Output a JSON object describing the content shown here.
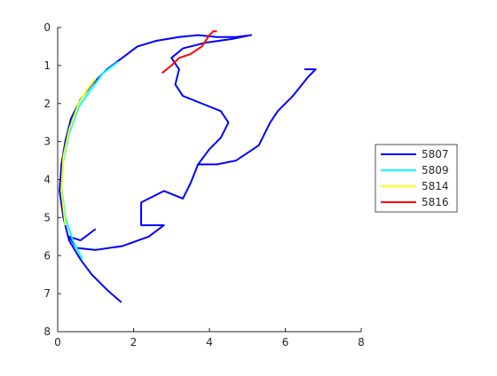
{
  "chart_data": {
    "type": "line",
    "xlim": [
      0,
      8
    ],
    "ylim": [
      0,
      8
    ],
    "ydir": "reverse",
    "xticks": [
      0,
      2,
      4,
      6,
      8
    ],
    "yticks": [
      0,
      1,
      2,
      3,
      4,
      5,
      6,
      7,
      8
    ],
    "legend": "east-outside",
    "series": [
      {
        "name": "5807",
        "color": "#0000ff",
        "x": [
          1.68,
          1.3,
          0.9,
          0.6,
          0.3,
          0.15,
          0.05,
          0.1,
          0.2,
          0.35,
          0.6,
          0.9,
          1.3,
          1.7,
          2.1,
          2.6,
          3.2,
          3.7,
          4.2,
          4.7,
          5.1,
          4.6,
          3.9,
          3.3,
          3.0,
          3.2,
          3.1,
          3.3,
          3.8,
          4.3,
          4.5,
          4.3,
          4.0,
          3.7,
          4.2,
          4.7,
          5.3,
          5.6,
          5.8,
          6.2,
          6.6,
          6.8,
          6.5,
          null,
          3.7,
          3.5,
          3.3,
          2.8,
          2.2,
          2.2,
          2.8,
          2.4,
          1.7,
          1.0,
          0.5,
          0.3,
          0.6,
          1.0
        ],
        "values": [
          7.23,
          6.9,
          6.5,
          6.1,
          5.6,
          5.0,
          4.3,
          3.6,
          3.0,
          2.4,
          1.9,
          1.5,
          1.1,
          0.8,
          0.5,
          0.35,
          0.25,
          0.2,
          0.25,
          0.25,
          0.2,
          0.3,
          0.4,
          0.55,
          0.8,
          1.1,
          1.5,
          1.8,
          2.0,
          2.2,
          2.5,
          2.9,
          3.2,
          3.6,
          3.6,
          3.5,
          3.1,
          2.5,
          2.2,
          1.8,
          1.3,
          1.1,
          1.1,
          null,
          3.6,
          4.1,
          4.5,
          4.3,
          4.6,
          5.2,
          5.2,
          5.5,
          5.75,
          5.85,
          5.8,
          5.5,
          5.6,
          5.3
        ]
      },
      {
        "name": "5809",
        "color": "#00ffff",
        "x": [
          0.65,
          0.4,
          0.2,
          0.1,
          0.15,
          0.3,
          0.55,
          0.9,
          1.2,
          1.6
        ],
        "values": [
          6.1,
          5.6,
          5.0,
          4.2,
          3.5,
          2.8,
          2.1,
          1.6,
          1.2,
          0.9
        ]
      },
      {
        "name": "5814",
        "color": "#ffff00",
        "x": [
          0.2,
          0.1,
          0.15,
          0.3,
          0.55,
          0.8,
          1.0
        ],
        "values": [
          5.2,
          4.3,
          3.4,
          2.7,
          2.0,
          1.6,
          1.35
        ]
      },
      {
        "name": "5816",
        "color": "#ff0000",
        "x": [
          2.75,
          3.0,
          3.2,
          3.5,
          3.8,
          4.0,
          4.1,
          4.2
        ],
        "values": [
          1.2,
          1.0,
          0.8,
          0.7,
          0.5,
          0.2,
          0.1,
          0.1
        ]
      }
    ]
  }
}
